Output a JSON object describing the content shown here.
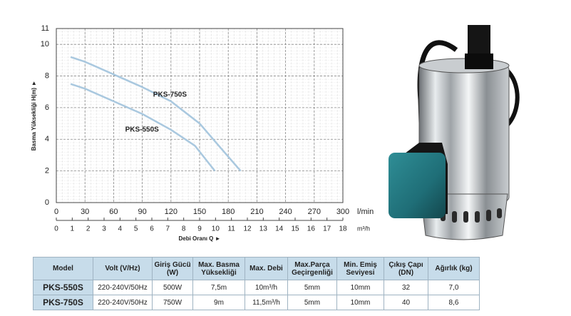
{
  "chart_data": {
    "type": "line",
    "ylabel": "Basma Yüksekliği H(m) ►",
    "xlabel": "Debi Oranı Q ►",
    "xunit": "l/min",
    "x2unit": "m³/h",
    "xlim": [
      0,
      300
    ],
    "xticks": [
      0,
      30,
      60,
      90,
      120,
      150,
      180,
      210,
      240,
      270,
      300
    ],
    "x2lim": [
      0,
      18
    ],
    "x2ticks": [
      0,
      1,
      2,
      3,
      4,
      5,
      6,
      7,
      8,
      9,
      10,
      11,
      12,
      13,
      14,
      15,
      16,
      17,
      18
    ],
    "ylim": [
      0,
      11
    ],
    "yticks": [
      0,
      2,
      4,
      6,
      8,
      10,
      11
    ],
    "grid": true,
    "label_color": "#2e8a94",
    "series": [
      {
        "name": "PKS-750S",
        "color": "#a9c8df",
        "x": [
          15,
          30,
          60,
          90,
          120,
          150,
          170,
          193
        ],
        "values": [
          9.2,
          8.9,
          8.1,
          7.3,
          6.4,
          5.0,
          3.6,
          2.0
        ]
      },
      {
        "name": "PKS-550S",
        "color": "#a9c8df",
        "x": [
          15,
          30,
          60,
          90,
          120,
          145,
          166
        ],
        "values": [
          7.5,
          7.2,
          6.4,
          5.6,
          4.6,
          3.6,
          2.0
        ]
      }
    ]
  },
  "table": {
    "header": [
      "Model",
      "Volt (V/Hz)",
      "Giriş Gücü (W)",
      "Max. Basma Yüksekliği",
      "Max. Debi",
      "Max.Parça Geçirgenliği",
      "Min. Emiş Seviyesi",
      "Çıkış Çapı (DN)",
      "Ağırlık (kg)"
    ],
    "rows": [
      [
        "PKS-550S",
        "220-240V/50Hz",
        "500W",
        "7,5m",
        "10m³/h",
        "5mm",
        "10mm",
        "32",
        "7,0"
      ],
      [
        "PKS-750S",
        "220-240V/50Hz",
        "750W",
        "9m",
        "11,5m³/h",
        "5mm",
        "10mm",
        "40",
        "8,6"
      ]
    ]
  }
}
